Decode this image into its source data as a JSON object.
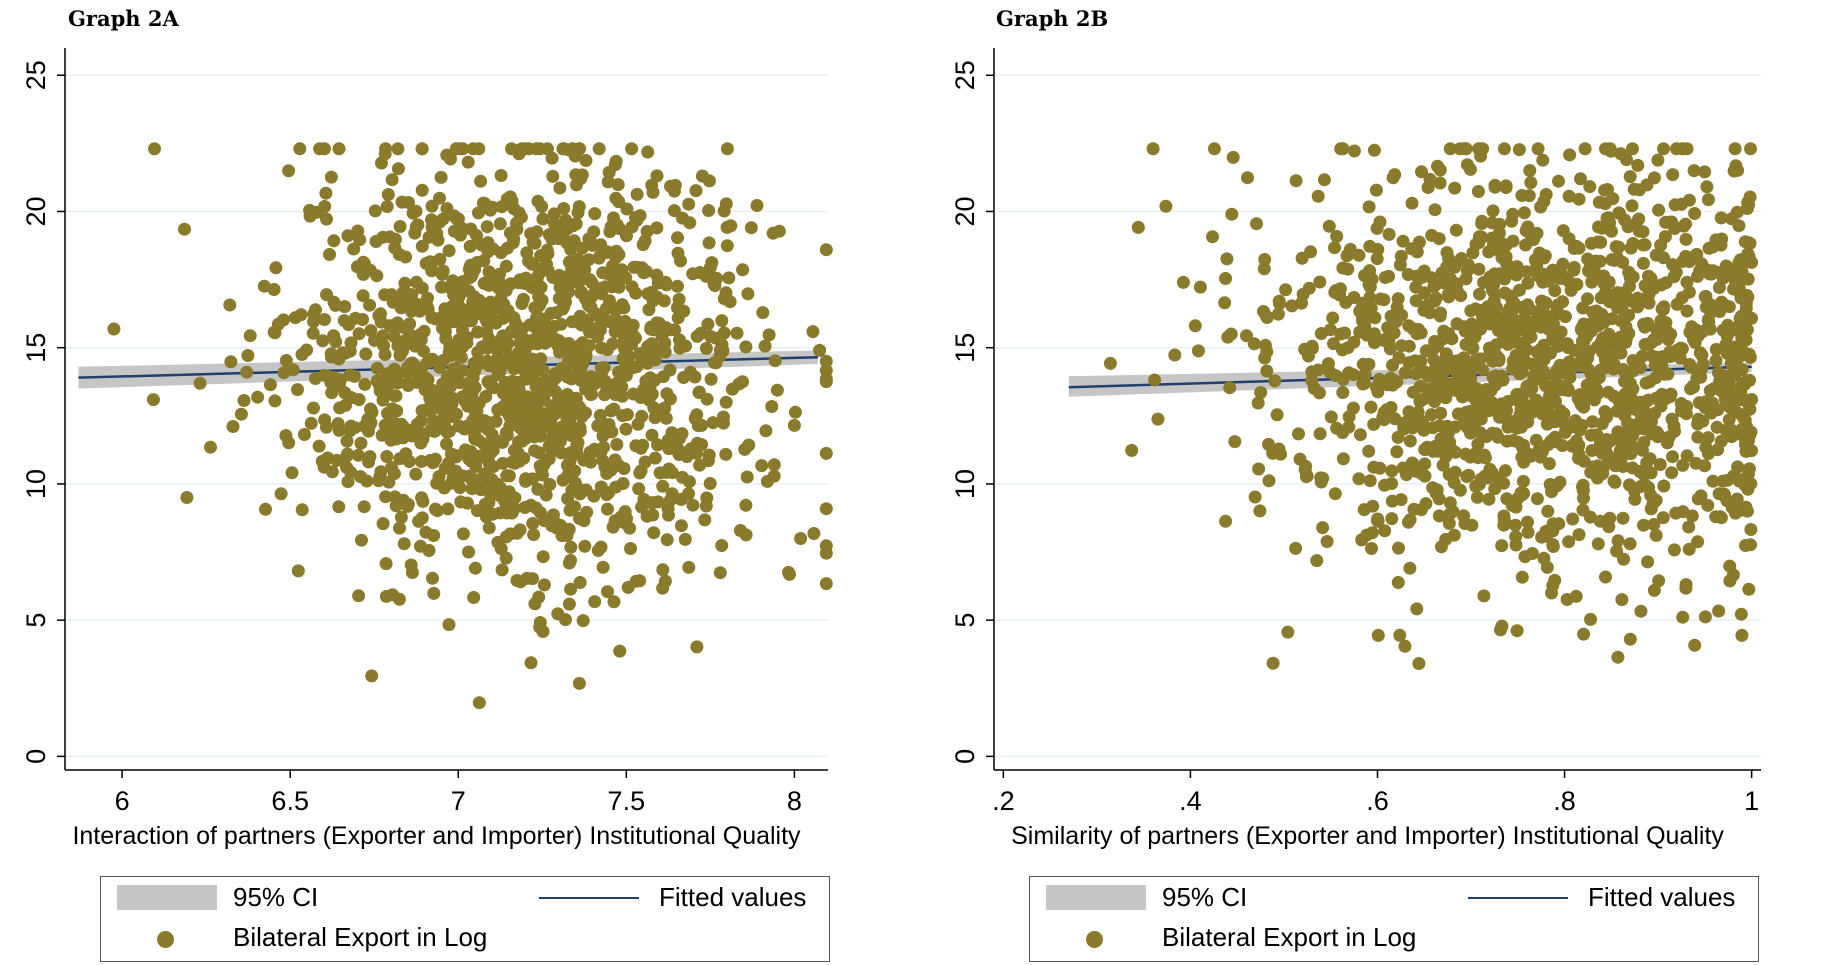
{
  "chart_data": [
    {
      "type": "scatter",
      "title": "Graph 2A",
      "xlabel": "Interaction of partners (Exporter and Importer) Institutional Quality",
      "ylabel": "",
      "xlim": [
        5.83,
        8.1
      ],
      "ylim": [
        -0.5,
        26
      ],
      "x_ticks": [
        6,
        6.5,
        7,
        7.5,
        8
      ],
      "x_tick_labels": [
        "6",
        "6.5",
        "7",
        "7.5",
        "8"
      ],
      "y_ticks": [
        0,
        5,
        10,
        15,
        20,
        25
      ],
      "y_tick_labels": [
        "0",
        "5",
        "10",
        "15",
        "20",
        "25"
      ],
      "grid": "horizontal",
      "legend_position": "bottom",
      "colors": {
        "points": "#8a7a2b",
        "fit": "#1f3f6e",
        "ci": "#c6c6c6"
      },
      "scatter_summary": {
        "x_center": 7.2,
        "x_spread": 0.35,
        "y_center": 14.3,
        "y_spread": 3.8,
        "count": 1500
      },
      "series": [
        {
          "name": "95% CI",
          "kind": "band",
          "x": [
            5.87,
            8.07
          ],
          "lower": [
            13.5,
            14.4
          ],
          "upper": [
            14.3,
            14.9
          ]
        },
        {
          "name": "Fitted values",
          "kind": "line",
          "x": [
            5.87,
            8.07
          ],
          "y": [
            13.9,
            14.65
          ]
        },
        {
          "name": "Bilateral Export in Log",
          "kind": "points"
        }
      ]
    },
    {
      "type": "scatter",
      "title": "Graph 2B",
      "xlabel": "Similarity of partners (Exporter and Importer) Institutional Quality",
      "ylabel": "",
      "xlim": [
        0.19,
        1.01
      ],
      "ylim": [
        -0.5,
        26
      ],
      "x_ticks": [
        0.2,
        0.4,
        0.6,
        0.8,
        1
      ],
      "x_tick_labels": [
        ".2",
        ".4",
        ".6",
        ".8",
        "1"
      ],
      "y_ticks": [
        0,
        5,
        10,
        15,
        20,
        25
      ],
      "y_tick_labels": [
        "0",
        "5",
        "10",
        "15",
        "20",
        "25"
      ],
      "grid": "horizontal",
      "legend_position": "bottom",
      "colors": {
        "points": "#8a7a2b",
        "fit": "#1f3f6e",
        "ci": "#c6c6c6"
      },
      "scatter_summary": {
        "x_center": 0.78,
        "x_spread": 0.16,
        "y_center": 14.3,
        "y_spread": 3.8,
        "count": 1500
      },
      "series": [
        {
          "name": "95% CI",
          "kind": "band",
          "x": [
            0.27,
            1.0
          ],
          "lower": [
            13.2,
            14.1
          ],
          "upper": [
            13.95,
            14.45
          ]
        },
        {
          "name": "Fitted values",
          "kind": "line",
          "x": [
            0.27,
            1.0
          ],
          "y": [
            13.55,
            14.3
          ]
        },
        {
          "name": "Bilateral Export in Log",
          "kind": "points"
        }
      ]
    }
  ],
  "legend": {
    "ci_label": "95% CI",
    "fit_label": "Fitted values",
    "points_label": "Bilateral Export in Log"
  }
}
